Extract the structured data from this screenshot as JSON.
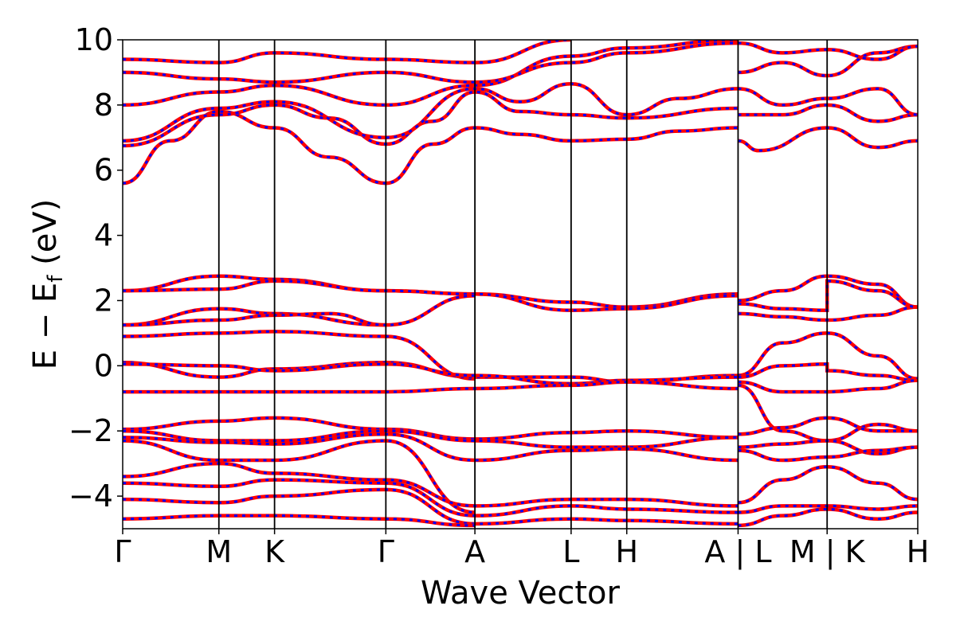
{
  "chart_data": {
    "type": "line",
    "xlabel": "Wave Vector",
    "ylabel": "E − E",
    "ylabel_sub": "f",
    "ylabel_unit": " (eV)",
    "ylim": [
      -5,
      10
    ],
    "y_ticks": [
      {
        "value": 10,
        "label": "10"
      },
      {
        "value": 8,
        "label": "8"
      },
      {
        "value": 6,
        "label": "6"
      },
      {
        "value": 4,
        "label": "4"
      },
      {
        "value": 2,
        "label": "2"
      },
      {
        "value": 0,
        "label": "0"
      },
      {
        "value": -2,
        "label": "−2"
      },
      {
        "value": -4,
        "label": "−4"
      }
    ],
    "k_points": [
      {
        "label": "Γ",
        "pos": 0.0
      },
      {
        "label": "M",
        "pos": 0.121
      },
      {
        "label": "K",
        "pos": 0.191
      },
      {
        "label": "Γ",
        "pos": 0.331
      },
      {
        "label": "A",
        "pos": 0.443
      },
      {
        "label": "L",
        "pos": 0.564
      },
      {
        "label": "H",
        "pos": 0.634
      },
      {
        "label": "A | L",
        "pos": 0.774
      },
      {
        "label": "M | K",
        "pos": 0.886
      },
      {
        "label": "H",
        "pos": 1.0
      }
    ],
    "grid": false,
    "legend": "none",
    "series_colors": [
      "#ff0000",
      "#0000ff"
    ],
    "series_styles": [
      "solid",
      "dashed"
    ],
    "bands": [
      [
        [
          0.0,
          5.6
        ],
        [
          0.06,
          6.9
        ],
        [
          0.121,
          7.8
        ],
        [
          0.191,
          7.3
        ],
        [
          0.26,
          6.4
        ],
        [
          0.331,
          5.6
        ],
        [
          0.39,
          6.8
        ],
        [
          0.443,
          7.3
        ],
        [
          0.5,
          7.1
        ],
        [
          0.564,
          6.9
        ],
        [
          0.634,
          6.95
        ],
        [
          0.7,
          7.2
        ],
        [
          0.774,
          7.3
        ]
      ],
      [
        [
          0.0,
          6.75
        ],
        [
          0.121,
          7.7
        ],
        [
          0.191,
          8.0
        ],
        [
          0.26,
          7.6
        ],
        [
          0.331,
          6.8
        ],
        [
          0.39,
          7.5
        ],
        [
          0.443,
          8.4
        ],
        [
          0.5,
          7.8
        ],
        [
          0.564,
          7.7
        ],
        [
          0.634,
          7.6
        ],
        [
          0.774,
          7.9
        ]
      ],
      [
        [
          0.0,
          6.9
        ],
        [
          0.121,
          7.9
        ],
        [
          0.191,
          8.1
        ],
        [
          0.331,
          7.0
        ],
        [
          0.443,
          8.5
        ],
        [
          0.5,
          8.1
        ],
        [
          0.564,
          8.65
        ],
        [
          0.634,
          7.7
        ],
        [
          0.7,
          8.2
        ],
        [
          0.774,
          8.5
        ]
      ],
      [
        [
          0.0,
          8.0
        ],
        [
          0.121,
          8.4
        ],
        [
          0.191,
          8.6
        ],
        [
          0.331,
          8.0
        ],
        [
          0.443,
          8.6
        ],
        [
          0.564,
          9.5
        ],
        [
          0.634,
          9.75
        ],
        [
          0.774,
          10.0
        ]
      ],
      [
        [
          0.0,
          9.0
        ],
        [
          0.121,
          8.8
        ],
        [
          0.191,
          8.7
        ],
        [
          0.331,
          9.0
        ],
        [
          0.443,
          8.7
        ],
        [
          0.564,
          9.3
        ],
        [
          0.634,
          9.6
        ],
        [
          0.774,
          9.9
        ]
      ],
      [
        [
          0.0,
          9.4
        ],
        [
          0.121,
          9.3
        ],
        [
          0.191,
          9.6
        ],
        [
          0.331,
          9.4
        ],
        [
          0.443,
          9.3
        ],
        [
          0.564,
          10.0
        ]
      ],
      [
        [
          0.0,
          2.3
        ],
        [
          0.121,
          2.75
        ],
        [
          0.191,
          2.65
        ],
        [
          0.331,
          2.3
        ],
        [
          0.443,
          2.2
        ],
        [
          0.564,
          1.95
        ],
        [
          0.634,
          1.8
        ],
        [
          0.774,
          2.2
        ]
      ],
      [
        [
          0.0,
          2.3
        ],
        [
          0.121,
          2.35
        ],
        [
          0.191,
          2.6
        ],
        [
          0.331,
          2.3
        ],
        [
          0.443,
          2.2
        ],
        [
          0.564,
          1.7
        ],
        [
          0.634,
          1.75
        ],
        [
          0.774,
          2.15
        ]
      ],
      [
        [
          0.0,
          1.25
        ],
        [
          0.121,
          1.75
        ],
        [
          0.191,
          1.6
        ],
        [
          0.331,
          1.25
        ],
        [
          0.443,
          2.15
        ]
      ],
      [
        [
          0.0,
          1.25
        ],
        [
          0.121,
          1.4
        ],
        [
          0.191,
          1.55
        ],
        [
          0.26,
          1.6
        ],
        [
          0.331,
          1.25
        ]
      ],
      [
        [
          0.0,
          0.9
        ],
        [
          0.121,
          1.0
        ],
        [
          0.191,
          1.05
        ],
        [
          0.331,
          0.9
        ],
        [
          0.443,
          -0.4
        ]
      ],
      [
        [
          0.0,
          0.1
        ],
        [
          0.121,
          -0.35
        ],
        [
          0.191,
          -0.1
        ],
        [
          0.331,
          0.1
        ],
        [
          0.443,
          -0.35
        ],
        [
          0.564,
          -0.35
        ],
        [
          0.634,
          -0.5
        ],
        [
          0.774,
          -0.3
        ]
      ],
      [
        [
          0.0,
          0.05
        ],
        [
          0.121,
          0.0
        ],
        [
          0.191,
          -0.15
        ],
        [
          0.331,
          0.05
        ],
        [
          0.443,
          -0.3
        ],
        [
          0.564,
          -0.55
        ],
        [
          0.634,
          -0.45
        ],
        [
          0.774,
          -0.35
        ]
      ],
      [
        [
          0.0,
          -0.8
        ],
        [
          0.331,
          -0.8
        ],
        [
          0.443,
          -0.7
        ],
        [
          0.564,
          -0.6
        ],
        [
          0.634,
          -0.5
        ],
        [
          0.774,
          -0.7
        ]
      ],
      [
        [
          0.0,
          -1.95
        ],
        [
          0.121,
          -1.7
        ],
        [
          0.191,
          -1.6
        ],
        [
          0.331,
          -1.95
        ],
        [
          0.443,
          -2.25
        ],
        [
          0.564,
          -2.05
        ],
        [
          0.634,
          -2.0
        ],
        [
          0.774,
          -2.2
        ]
      ],
      [
        [
          0.0,
          -2.0
        ],
        [
          0.121,
          -2.3
        ],
        [
          0.191,
          -2.3
        ],
        [
          0.331,
          -2.0
        ],
        [
          0.443,
          -2.3
        ],
        [
          0.564,
          -2.5
        ],
        [
          0.634,
          -2.5
        ],
        [
          0.774,
          -2.2
        ]
      ],
      [
        [
          0.0,
          -2.2
        ],
        [
          0.121,
          -2.35
        ],
        [
          0.191,
          -2.4
        ],
        [
          0.331,
          -2.1
        ],
        [
          0.443,
          -2.9
        ],
        [
          0.564,
          -2.6
        ],
        [
          0.634,
          -2.55
        ],
        [
          0.774,
          -2.9
        ]
      ],
      [
        [
          0.0,
          -2.3
        ],
        [
          0.121,
          -2.9
        ],
        [
          0.191,
          -2.9
        ],
        [
          0.331,
          -2.3
        ],
        [
          0.443,
          -4.5
        ]
      ],
      [
        [
          0.0,
          -3.4
        ],
        [
          0.121,
          -3.0
        ],
        [
          0.191,
          -3.3
        ],
        [
          0.331,
          -3.5
        ],
        [
          0.443,
          -4.3
        ],
        [
          0.564,
          -4.1
        ],
        [
          0.634,
          -4.1
        ],
        [
          0.774,
          -4.3
        ]
      ],
      [
        [
          0.0,
          -3.6
        ],
        [
          0.121,
          -3.7
        ],
        [
          0.191,
          -3.5
        ],
        [
          0.331,
          -3.6
        ],
        [
          0.443,
          -4.6
        ],
        [
          0.564,
          -4.3
        ],
        [
          0.634,
          -4.4
        ],
        [
          0.774,
          -4.5
        ]
      ],
      [
        [
          0.0,
          -4.1
        ],
        [
          0.121,
          -4.2
        ],
        [
          0.191,
          -4.0
        ],
        [
          0.331,
          -3.8
        ],
        [
          0.443,
          -4.85
        ],
        [
          0.564,
          -4.7
        ],
        [
          0.634,
          -4.75
        ],
        [
          0.774,
          -4.85
        ]
      ],
      [
        [
          0.0,
          -4.7
        ],
        [
          0.121,
          -4.6
        ],
        [
          0.191,
          -4.6
        ],
        [
          0.331,
          -4.7
        ],
        [
          0.443,
          -4.9
        ]
      ],
      [
        [
          0.774,
          6.9
        ],
        [
          0.8,
          6.6
        ],
        [
          0.886,
          7.3
        ],
        [
          0.95,
          6.7
        ],
        [
          1.0,
          6.9
        ]
      ],
      [
        [
          0.774,
          7.7
        ],
        [
          0.83,
          7.7
        ],
        [
          0.886,
          8.0
        ],
        [
          0.95,
          7.5
        ],
        [
          1.0,
          7.7
        ]
      ],
      [
        [
          0.774,
          8.5
        ],
        [
          0.83,
          8.0
        ],
        [
          0.886,
          8.2
        ],
        [
          0.95,
          8.5
        ],
        [
          1.0,
          7.7
        ]
      ],
      [
        [
          0.774,
          9.0
        ],
        [
          0.83,
          9.3
        ],
        [
          0.886,
          8.9
        ],
        [
          0.95,
          9.6
        ],
        [
          1.0,
          9.8
        ]
      ],
      [
        [
          0.774,
          9.9
        ],
        [
          0.83,
          9.6
        ],
        [
          0.886,
          9.7
        ],
        [
          0.95,
          9.4
        ],
        [
          1.0,
          9.8
        ]
      ],
      [
        [
          0.774,
          2.0
        ],
        [
          0.83,
          2.3
        ],
        [
          0.886,
          2.75
        ],
        [
          0.95,
          2.5
        ],
        [
          1.0,
          1.8
        ]
      ],
      [
        [
          0.774,
          1.6
        ],
        [
          0.83,
          1.5
        ],
        [
          0.886,
          1.4
        ],
        [
          0.95,
          1.55
        ],
        [
          1.0,
          1.8
        ]
      ],
      [
        [
          0.774,
          1.9
        ],
        [
          0.83,
          1.75
        ],
        [
          0.886,
          1.7
        ],
        [
          0.886,
          2.6
        ],
        [
          0.95,
          2.3
        ],
        [
          1.0,
          1.8
        ]
      ],
      [
        [
          0.774,
          -0.3
        ],
        [
          0.83,
          0.7
        ],
        [
          0.886,
          1.0
        ],
        [
          0.95,
          0.3
        ],
        [
          1.0,
          -0.4
        ]
      ],
      [
        [
          0.774,
          -0.35
        ],
        [
          0.83,
          0.0
        ],
        [
          0.886,
          0.05
        ],
        [
          0.886,
          -0.15
        ],
        [
          0.95,
          -0.3
        ],
        [
          1.0,
          -0.45
        ]
      ],
      [
        [
          0.774,
          -0.5
        ],
        [
          0.83,
          -0.8
        ],
        [
          0.886,
          -0.8
        ],
        [
          0.95,
          -0.7
        ],
        [
          1.0,
          -0.45
        ]
      ],
      [
        [
          0.774,
          -0.6
        ],
        [
          0.83,
          -2.0
        ],
        [
          0.886,
          -2.3
        ],
        [
          0.95,
          -1.8
        ],
        [
          1.0,
          -2.0
        ]
      ],
      [
        [
          0.774,
          -2.1
        ],
        [
          0.83,
          -1.9
        ],
        [
          0.886,
          -1.6
        ],
        [
          0.95,
          -2.0
        ],
        [
          1.0,
          -2.0
        ]
      ],
      [
        [
          0.774,
          -2.5
        ],
        [
          0.83,
          -2.4
        ],
        [
          0.886,
          -2.3
        ],
        [
          0.95,
          -2.7
        ],
        [
          1.0,
          -2.5
        ]
      ],
      [
        [
          0.774,
          -2.6
        ],
        [
          0.83,
          -2.9
        ],
        [
          0.886,
          -2.8
        ],
        [
          0.95,
          -2.6
        ],
        [
          1.0,
          -2.5
        ]
      ],
      [
        [
          0.774,
          -4.2
        ],
        [
          0.83,
          -3.5
        ],
        [
          0.886,
          -3.1
        ],
        [
          0.95,
          -3.6
        ],
        [
          1.0,
          -4.1
        ]
      ],
      [
        [
          0.774,
          -4.5
        ],
        [
          0.83,
          -4.3
        ],
        [
          0.886,
          -4.3
        ],
        [
          0.95,
          -4.4
        ],
        [
          1.0,
          -4.3
        ]
      ],
      [
        [
          0.774,
          -4.9
        ],
        [
          0.83,
          -4.6
        ],
        [
          0.886,
          -4.4
        ],
        [
          0.95,
          -4.7
        ],
        [
          1.0,
          -4.5
        ]
      ]
    ]
  }
}
